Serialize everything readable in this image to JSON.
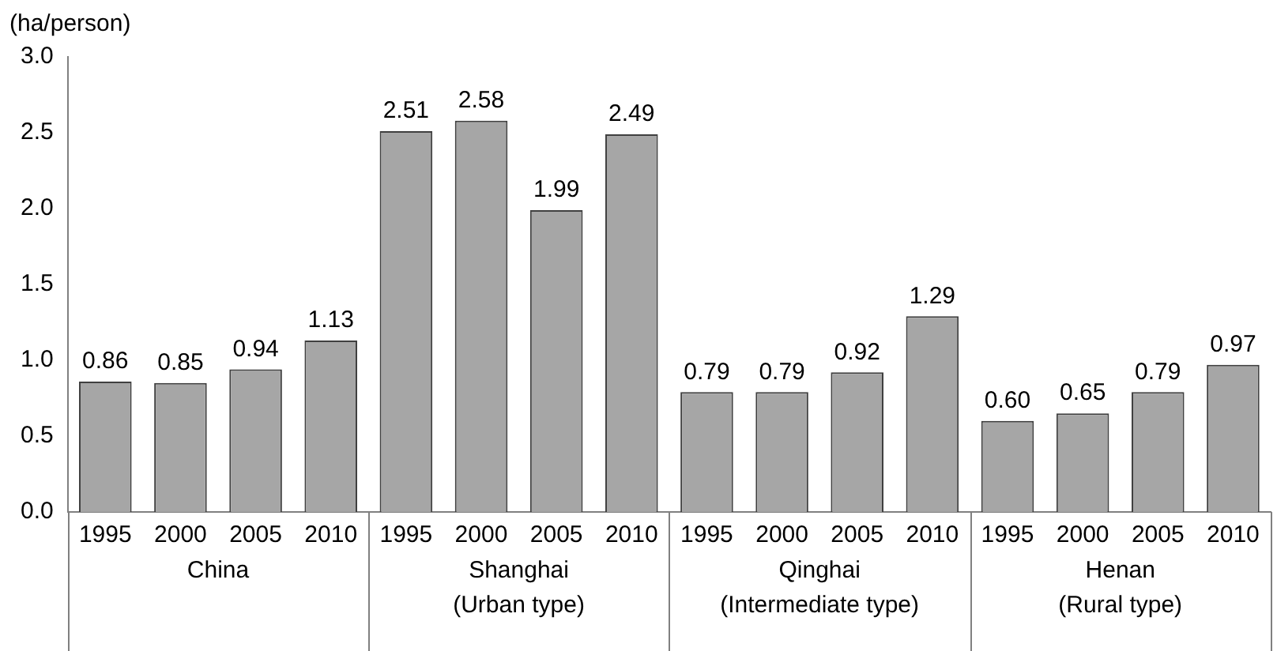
{
  "chart_data": {
    "type": "bar",
    "ylabel": "(ha/person)",
    "categories": [
      "1995",
      "2000",
      "2005",
      "2010",
      "1995",
      "2000",
      "2005",
      "2010",
      "1995",
      "2000",
      "2005",
      "2010",
      "1995",
      "2000",
      "2005",
      "2010"
    ],
    "values": [
      0.86,
      0.85,
      0.94,
      1.13,
      2.51,
      2.58,
      1.99,
      2.49,
      0.79,
      0.79,
      0.92,
      1.29,
      0.6,
      0.65,
      0.79,
      0.97
    ],
    "value_labels": [
      "0.86",
      "0.85",
      "0.94",
      "1.13",
      "2.51",
      "2.58",
      "1.99",
      "2.49",
      "0.79",
      "0.79",
      "0.92",
      "1.29",
      "0.60",
      "0.65",
      "0.79",
      "0.97"
    ],
    "color": "#a6a6a6",
    "ylim": [
      0,
      3
    ],
    "yticks": [
      {
        "value": 0,
        "label": "0.0"
      },
      {
        "value": 0.5,
        "label": "0.5"
      },
      {
        "value": 1,
        "label": "1.0"
      },
      {
        "value": 1.5,
        "label": "1.5"
      },
      {
        "value": 2,
        "label": "2.0"
      },
      {
        "value": 2.5,
        "label": "2.5"
      },
      {
        "value": 3,
        "label": "3.0"
      }
    ],
    "grid": false,
    "legend": false,
    "annotations": [
      "China",
      "Shanghai\n(Urban type)",
      "Qinghai\n(Intermediate type)",
      "Henan\n(Rural type)"
    ]
  }
}
